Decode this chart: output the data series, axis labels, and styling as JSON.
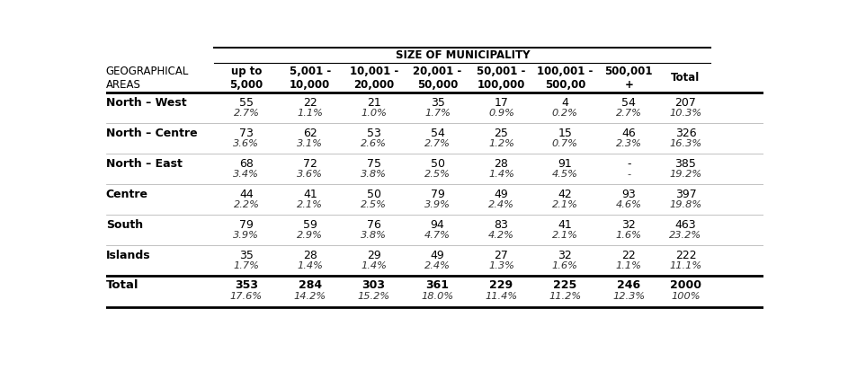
{
  "title": "SIZE OF MUNICIPALITY",
  "col_headers": [
    "up to\n5,000",
    "5,001 -\n10,000",
    "10,001 -\n20,000",
    "20,001 -\n50,000",
    "50,001 -\n100,000",
    "100,001 -\n500,00",
    "500,001\n+",
    "Total"
  ],
  "geo_header": "GEOGRAPHICAL\nAREAS",
  "areas": [
    "North – West",
    "North – Centre",
    "North – East",
    "Centre",
    "South",
    "Islands"
  ],
  "area_counts": [
    [
      "55",
      "22",
      "21",
      "35",
      "17",
      "4",
      "54",
      "207"
    ],
    [
      "73",
      "62",
      "53",
      "54",
      "25",
      "15",
      "46",
      "326"
    ],
    [
      "68",
      "72",
      "75",
      "50",
      "28",
      "91",
      "-",
      "385"
    ],
    [
      "44",
      "41",
      "50",
      "79",
      "49",
      "42",
      "93",
      "397"
    ],
    [
      "79",
      "59",
      "76",
      "94",
      "83",
      "41",
      "32",
      "463"
    ],
    [
      "35",
      "28",
      "29",
      "49",
      "27",
      "32",
      "22",
      "222"
    ]
  ],
  "area_pcts": [
    [
      "2.7%",
      "1.1%",
      "1.0%",
      "1.7%",
      "0.9%",
      "0.2%",
      "2.7%",
      "10.3%"
    ],
    [
      "3.6%",
      "3.1%",
      "2.6%",
      "2.7%",
      "1.2%",
      "0.7%",
      "2.3%",
      "16.3%"
    ],
    [
      "3.4%",
      "3.6%",
      "3.8%",
      "2.5%",
      "1.4%",
      "4.5%",
      "-",
      "19.2%"
    ],
    [
      "2.2%",
      "2.1%",
      "2.5%",
      "3.9%",
      "2.4%",
      "2.1%",
      "4.6%",
      "19.8%"
    ],
    [
      "3.9%",
      "2.9%",
      "3.8%",
      "4.7%",
      "4.2%",
      "2.1%",
      "1.6%",
      "23.2%"
    ],
    [
      "1.7%",
      "1.4%",
      "1.4%",
      "2.4%",
      "1.3%",
      "1.6%",
      "1.1%",
      "11.1%"
    ]
  ],
  "total_counts": [
    "353",
    "284",
    "303",
    "361",
    "229",
    "225",
    "246",
    "2000"
  ],
  "total_pcts": [
    "17.6%",
    "14.2%",
    "15.2%",
    "18.0%",
    "11.4%",
    "11.2%",
    "12.3%",
    "100%"
  ],
  "bg_color": "#ffffff"
}
